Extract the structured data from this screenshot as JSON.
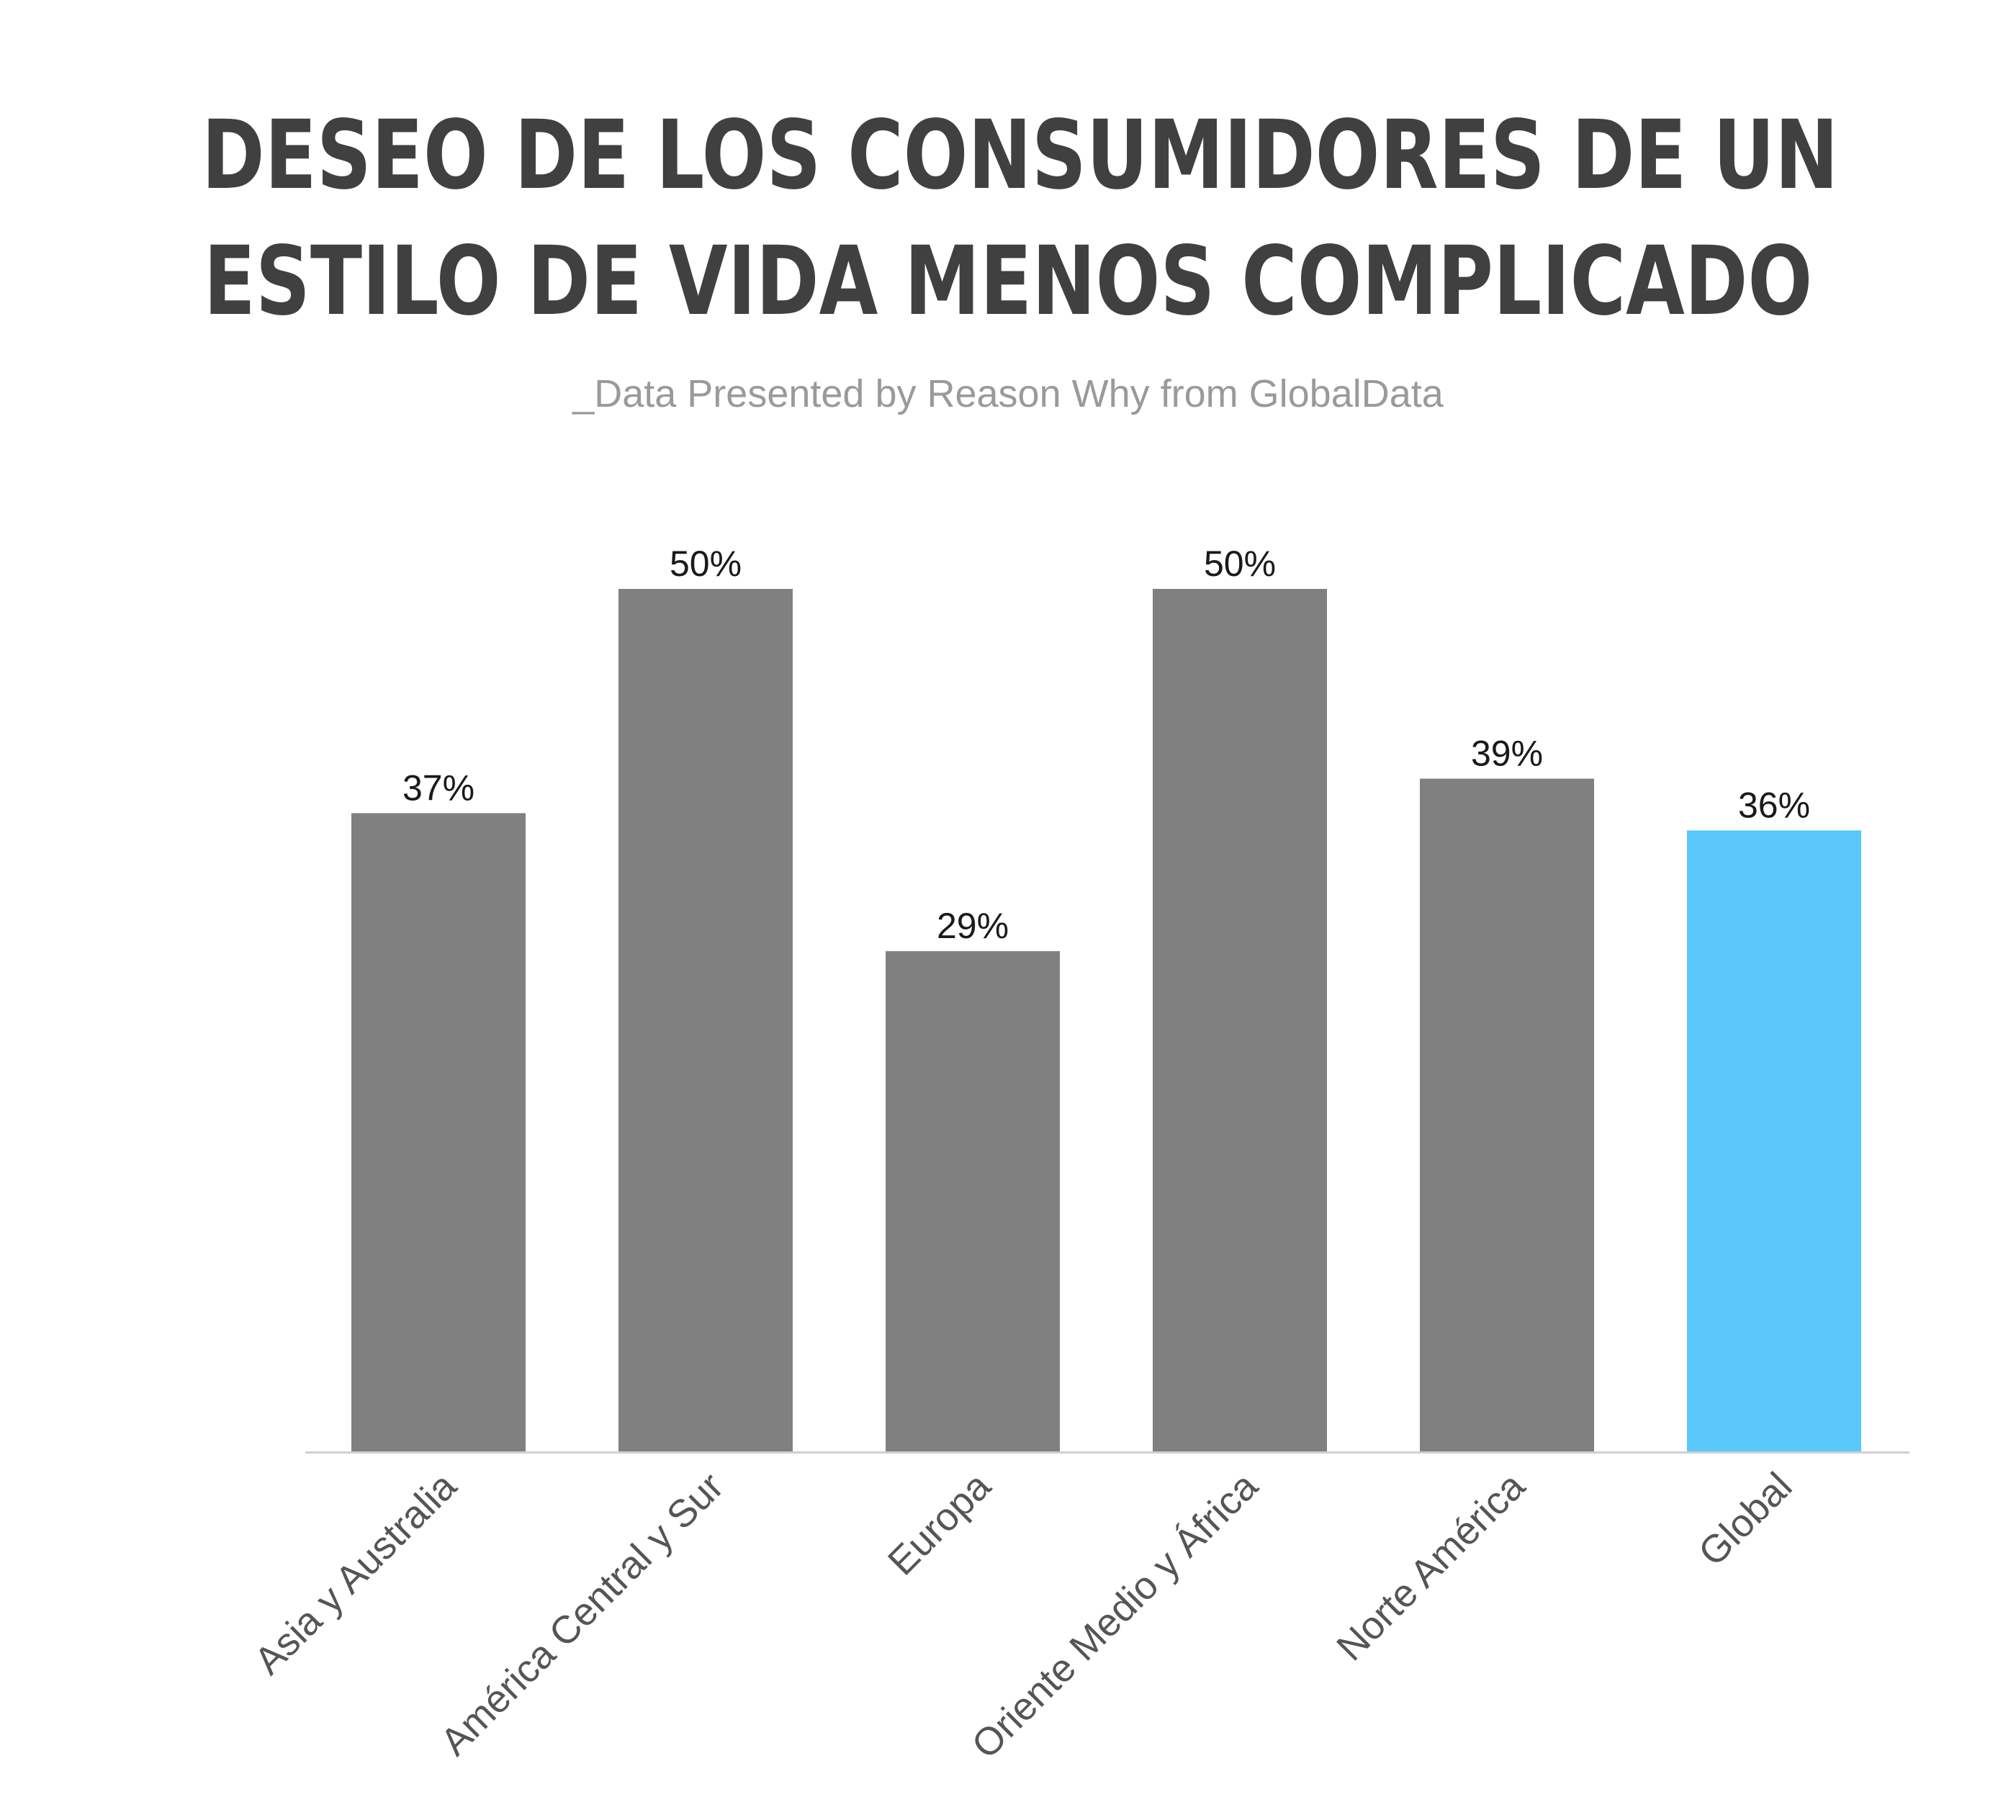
{
  "title": {
    "line1": "DESEO DE LOS CONSUMIDORES DE UN",
    "line2": "ESTILO DE VIDA MENOS COMPLICADO"
  },
  "subtitle": "_Data Presented by Reason Why from GlobalData",
  "colors": {
    "bar_default": "#808080",
    "bar_highlight": "#5ac8fa",
    "baseline": "#d0d0d0"
  },
  "chart_data": {
    "type": "bar",
    "title": "DESEO DE LOS CONSUMIDORES DE UN ESTILO DE VIDA MENOS COMPLICADO",
    "subtitle": "_Data Presented by Reason Why from GlobalData",
    "categories": [
      "Asia y Australia",
      "América Central y Sur",
      "Europa",
      "Oriente Medio y África",
      "Norte América",
      "Global"
    ],
    "values": [
      37,
      50,
      29,
      50,
      39,
      36
    ],
    "value_labels": [
      "37%",
      "50%",
      "29%",
      "50%",
      "39%",
      "36%"
    ],
    "highlight": [
      "Global"
    ],
    "xlabel": "",
    "ylabel": "",
    "ylim": [
      0,
      50
    ],
    "grid": false,
    "legend": "none"
  }
}
